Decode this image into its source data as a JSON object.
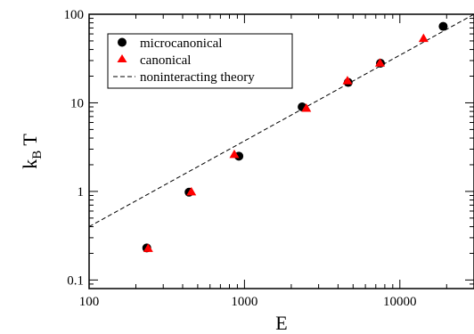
{
  "chart_data": {
    "type": "scatter",
    "x_scale": "log",
    "y_scale": "log",
    "xlim": [
      100,
      30000
    ],
    "ylim": [
      0.08,
      100
    ],
    "xlabel": "E",
    "ylabel_main": "k",
    "ylabel_sub": "B",
    "ylabel_tail": " T",
    "x_ticks": [
      {
        "value": 100,
        "label": "100"
      },
      {
        "value": 1000,
        "label": "1000"
      },
      {
        "value": 10000,
        "label": "10000"
      }
    ],
    "y_ticks": [
      {
        "value": 0.1,
        "label": "0.1"
      },
      {
        "value": 1,
        "label": "1"
      },
      {
        "value": 10,
        "label": "10"
      },
      {
        "value": 100,
        "label": "100"
      }
    ],
    "grid": false,
    "legend_position": "top-left",
    "series": [
      {
        "name": "microcanonical",
        "marker": "circle",
        "color": "#000000",
        "points": [
          [
            235,
            0.23
          ],
          [
            440,
            0.98
          ],
          [
            920,
            2.5
          ],
          [
            2350,
            9.0
          ],
          [
            4650,
            17.0
          ],
          [
            7500,
            28.0
          ],
          [
            19000,
            73.0
          ]
        ]
      },
      {
        "name": "canonical",
        "marker": "triangle",
        "color": "#ff0000",
        "points": [
          [
            240,
            0.23
          ],
          [
            455,
            1.0
          ],
          [
            860,
            2.65
          ],
          [
            2500,
            8.8
          ],
          [
            4600,
            18.0
          ],
          [
            7450,
            28.5
          ],
          [
            14200,
            54.0
          ]
        ]
      },
      {
        "name": "noninteracting theory",
        "marker": "none",
        "line": "dashed",
        "color": "#000000",
        "points": [
          [
            100,
            0.4
          ],
          [
            30000,
            100
          ]
        ]
      }
    ]
  }
}
